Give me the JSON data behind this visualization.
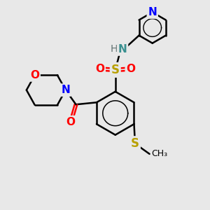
{
  "bg_color": "#e8e8e8",
  "bond_color": "#000000",
  "bond_width": 1.8,
  "figsize": [
    3.0,
    3.0
  ],
  "dpi": 100,
  "xlim": [
    0,
    10
  ],
  "ylim": [
    0,
    10
  ]
}
